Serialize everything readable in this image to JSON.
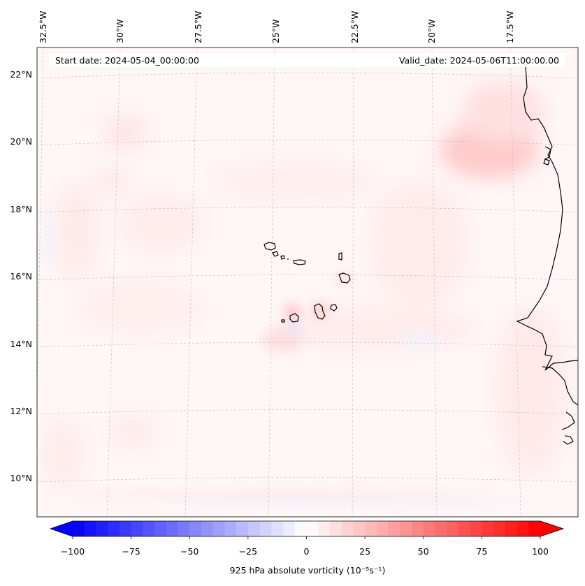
{
  "header": {
    "start_date": "Start date: 2024-05-04_00:00:00",
    "valid_date": "Valid_date: 2024-05-06T11:00:00.00"
  },
  "chart_data": {
    "type": "heatmap",
    "longitude_labels": [
      "32.5°W",
      "30°W",
      "27.5°W",
      "25°W",
      "22.5°W",
      "20°W",
      "17.5°W"
    ],
    "latitude_labels": [
      "22°N",
      "20°N",
      "18°N",
      "16°N",
      "14°N",
      "12°N",
      "10°N"
    ],
    "colorbar": {
      "label": "925 hPa absolute vorticity (10⁻⁵s⁻¹)",
      "ticks": [
        -100,
        -75,
        -50,
        -25,
        0,
        25,
        50,
        75,
        100
      ],
      "range": [
        -100,
        100
      ],
      "colormap": "bwr",
      "extend": "both",
      "colors": {
        "low": "#0000ff",
        "mid": "#ffffff",
        "high": "#ff0000"
      }
    },
    "grid": true
  }
}
